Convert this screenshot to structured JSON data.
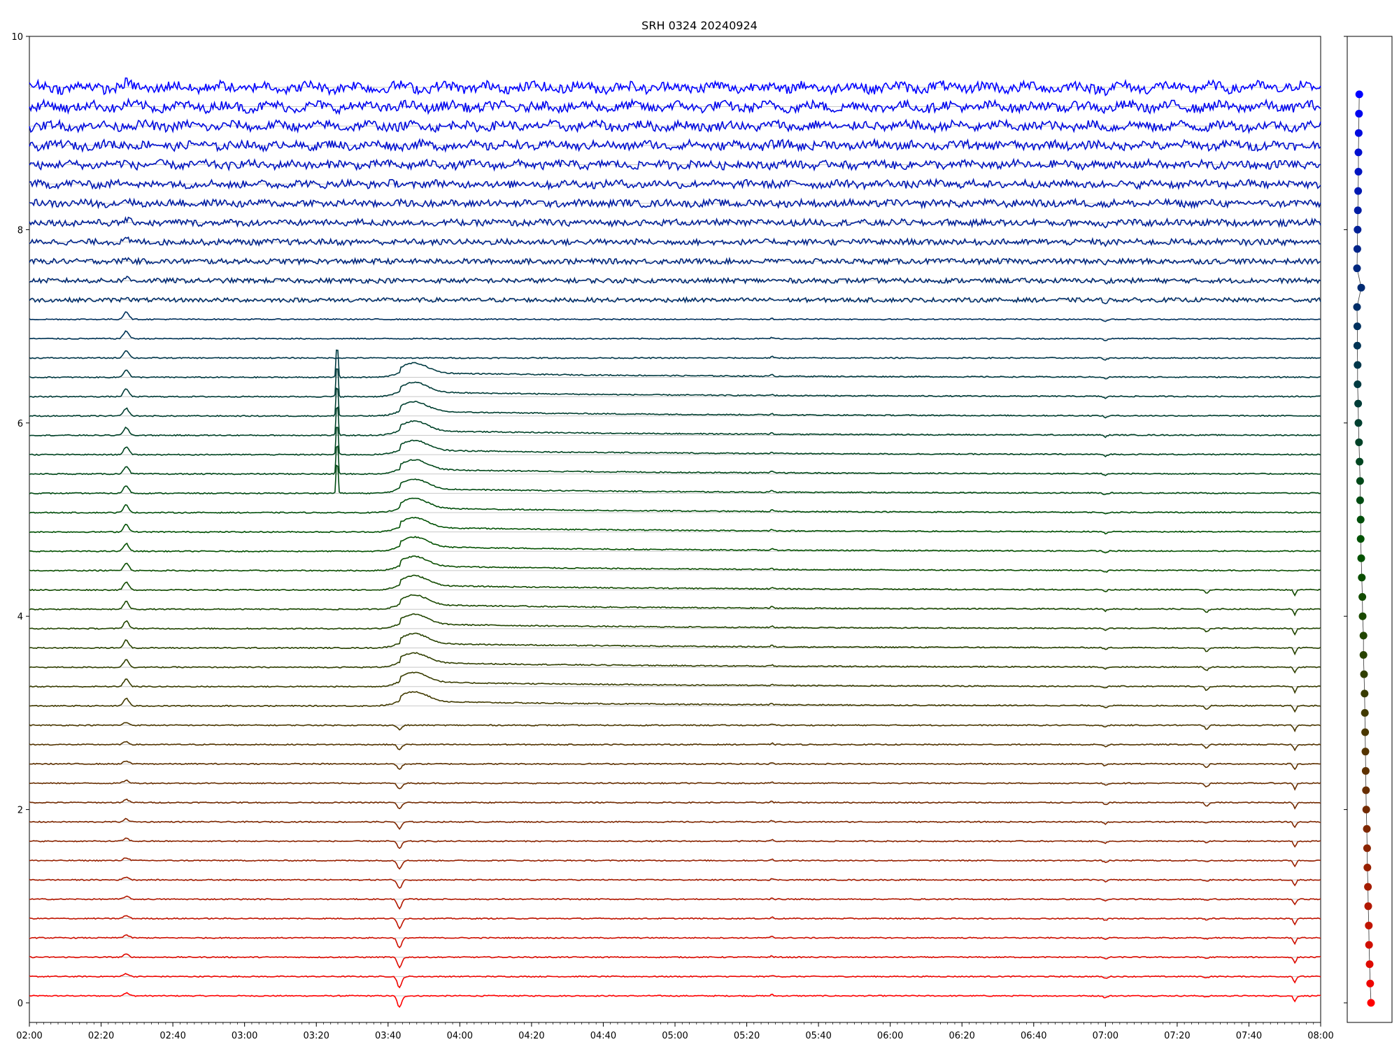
{
  "chart_data": {
    "type": "line",
    "title": "SRH 0324 20240924",
    "xlabel": "",
    "ylabel": "",
    "x_range": [
      "02:00",
      "08:00"
    ],
    "xlim_hours": [
      2,
      8
    ],
    "ylim": [
      -0.2,
      10
    ],
    "x_tick_labels": [
      "02:00",
      "02:20",
      "02:40",
      "03:00",
      "03:20",
      "03:40",
      "04:00",
      "04:20",
      "04:40",
      "05:00",
      "05:20",
      "05:40",
      "06:00",
      "06:20",
      "06:40",
      "07:00",
      "07:20",
      "07:40",
      "08:00"
    ],
    "y_tick_labels": [
      "0",
      "2",
      "4",
      "6",
      "8",
      "10"
    ],
    "y_ticks": [
      0,
      2,
      4,
      6,
      8,
      10
    ],
    "grid": "horizontal-baselines",
    "legend": "none",
    "series_count": 48,
    "baseline_step": 0.2,
    "color_start": "#ff0000",
    "color_middle": "#008000",
    "color_end": "#0000ff",
    "events_hours": [
      {
        "time": 2.45,
        "label": "02:27 burst"
      },
      {
        "time": 3.43,
        "label": "03:26 spike"
      },
      {
        "time": 3.72,
        "label": "03:43 burst"
      },
      {
        "time": 5.45,
        "label": "05:27 peak"
      },
      {
        "time": 7.0,
        "label": "07:00 dip"
      },
      {
        "time": 7.47,
        "label": "07:28 dip"
      },
      {
        "time": 7.88,
        "label": "07:53 dip"
      }
    ],
    "side_panel": {
      "type": "scatter",
      "x_offsets": [
        0.05,
        0.02,
        0.0,
        -0.02,
        -0.03,
        -0.05,
        -0.06,
        -0.08,
        -0.09,
        -0.1,
        -0.12,
        -0.13,
        -0.14,
        -0.15,
        -0.16,
        -0.17,
        -0.18,
        -0.2,
        -0.22,
        -0.22,
        -0.25,
        -0.26,
        -0.28,
        -0.3,
        -0.32,
        -0.32,
        -0.34,
        -0.34,
        -0.36,
        -0.38,
        -0.4,
        -0.41,
        -0.43,
        -0.43,
        -0.44,
        -0.44,
        -0.45,
        -0.3,
        -0.45,
        -0.44,
        -0.43,
        -0.42,
        -0.41,
        -0.4,
        -0.4,
        -0.39,
        -0.38,
        -0.37
      ]
    }
  }
}
